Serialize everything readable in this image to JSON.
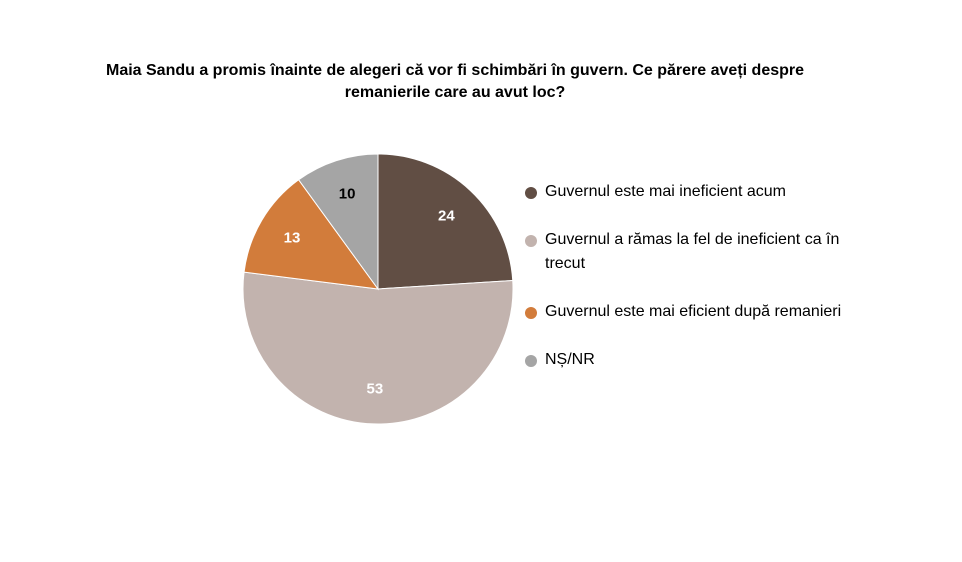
{
  "chart_data": {
    "type": "pie",
    "title": "Maia Sandu a promis înainte de alegeri că vor fi schimbări în guvern. Ce părere aveți despre remanierile care au avut loc?",
    "categories": [
      "Guvernul este mai ineficient acum",
      "Guvernul a rămas la fel de ineficient ca în trecut",
      "Guvernul este mai eficient după remanieri",
      "NȘ/NR"
    ],
    "values": [
      24,
      53,
      13,
      10
    ],
    "colors": [
      "#614e44",
      "#c2b3ae",
      "#d27c3b",
      "#a5a5a5"
    ],
    "label_colors": [
      "#ffffff",
      "#ffffff",
      "#ffffff",
      "#000000"
    ],
    "legend_position": "right",
    "data_labels": true
  }
}
